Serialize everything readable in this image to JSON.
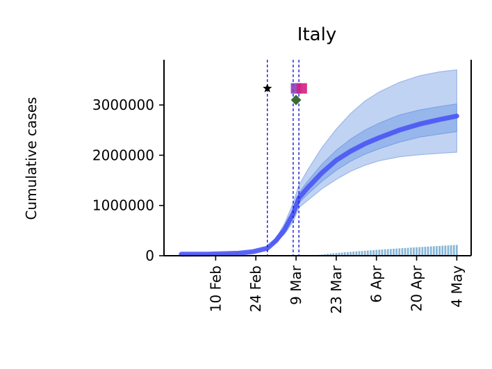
{
  "chart_data": {
    "type": "line",
    "title": "Italy",
    "xlabel": "",
    "ylabel": "Cumulative cases",
    "ylim": [
      0,
      3900000
    ],
    "x_range": [
      "2020-01-23",
      "2020-05-09"
    ],
    "y_ticks": [
      {
        "value": 0,
        "label": "0"
      },
      {
        "value": 1000000,
        "label": "1000000"
      },
      {
        "value": 2000000,
        "label": "2000000"
      },
      {
        "value": 3000000,
        "label": "3000000"
      }
    ],
    "x_ticks": [
      {
        "date": "2020-02-10",
        "label": "10 Feb"
      },
      {
        "date": "2020-02-24",
        "label": "24 Feb"
      },
      {
        "date": "2020-03-09",
        "label": "9 Mar"
      },
      {
        "date": "2020-03-23",
        "label": "23 Mar"
      },
      {
        "date": "2020-04-06",
        "label": "6 Apr"
      },
      {
        "date": "2020-04-20",
        "label": "20 Apr"
      },
      {
        "date": "2020-05-04",
        "label": "4 May"
      }
    ],
    "model_curve": {
      "x": [
        "2020-01-29",
        "2020-02-08",
        "2020-02-18",
        "2020-02-23",
        "2020-02-28",
        "2020-03-02",
        "2020-03-05",
        "2020-03-08",
        "2020-03-10",
        "2020-03-13",
        "2020-03-18",
        "2020-03-23",
        "2020-03-28",
        "2020-04-02",
        "2020-04-07",
        "2020-04-14",
        "2020-04-21",
        "2020-04-28",
        "2020-05-04"
      ],
      "median": [
        30000,
        33000,
        50000,
        80000,
        150000,
        300000,
        520000,
        840000,
        1150000,
        1350000,
        1650000,
        1900000,
        2080000,
        2230000,
        2350000,
        2500000,
        2620000,
        2710000,
        2780000
      ],
      "inner_lower": [
        30000,
        33000,
        50000,
        80000,
        150000,
        290000,
        480000,
        760000,
        1050000,
        1220000,
        1480000,
        1700000,
        1880000,
        2020000,
        2130000,
        2260000,
        2360000,
        2420000,
        2470000
      ],
      "inner_upper": [
        30000,
        33000,
        50000,
        80000,
        150000,
        310000,
        560000,
        920000,
        1250000,
        1480000,
        1820000,
        2100000,
        2320000,
        2500000,
        2640000,
        2800000,
        2900000,
        2970000,
        3020000
      ],
      "outer_lower": [
        30000,
        33000,
        50000,
        80000,
        150000,
        270000,
        430000,
        680000,
        960000,
        1100000,
        1330000,
        1520000,
        1680000,
        1800000,
        1890000,
        1970000,
        2010000,
        2040000,
        2060000
      ],
      "outer_upper": [
        30000,
        33000,
        50000,
        80000,
        150000,
        340000,
        640000,
        1050000,
        1400000,
        1700000,
        2150000,
        2520000,
        2830000,
        3080000,
        3260000,
        3450000,
        3580000,
        3660000,
        3700000
      ]
    },
    "observed_bars": {
      "start": "2020-03-16",
      "end": "2020-05-04",
      "start_value": 5000,
      "end_value": 215000
    },
    "intervention_lines": [
      "2020-02-28",
      "2020-03-08",
      "2020-03-10"
    ],
    "markers": [
      {
        "shape": "star",
        "date": "2020-02-28",
        "value": 3330000,
        "color": "#000000"
      },
      {
        "shape": "diamond",
        "date": "2020-03-09",
        "value": 3100000,
        "color": "#3a6b35"
      },
      {
        "shape": "square",
        "date": "2020-03-09",
        "value": 3330000,
        "color": "#8b3fbf"
      },
      {
        "shape": "square",
        "date": "2020-03-11",
        "value": 3330000,
        "color": "#d1207f"
      }
    ],
    "colors": {
      "outer_band": "#b6cbf0",
      "inner_band": "#8fb0ea",
      "median": "#4a55f5",
      "bars": "#88b7d8",
      "vlines": "#1a1ad6"
    }
  }
}
